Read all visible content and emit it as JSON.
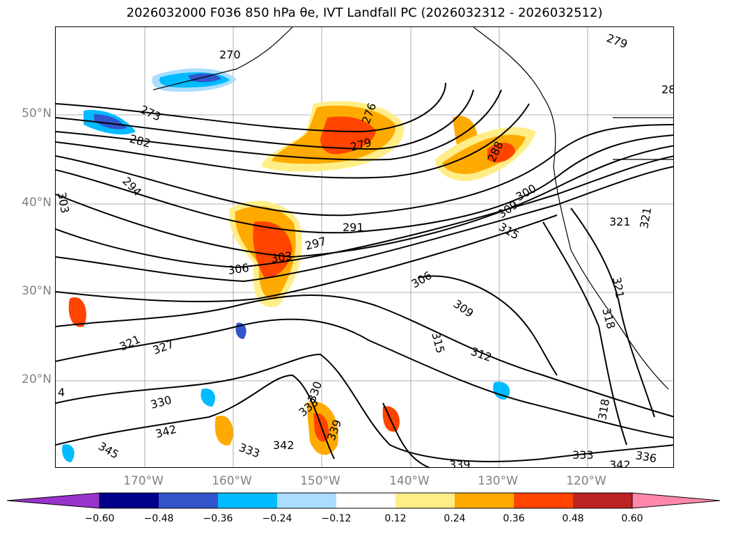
{
  "title": "2026032000 F036 850 hPa θe, IVT Landfall PC (2026032312 - 2026032512)",
  "lat_labels": [
    "50°N",
    "40°N",
    "30°N",
    "20°N"
  ],
  "lon_labels": [
    "170°W",
    "160°W",
    "150°W",
    "140°W",
    "130°W",
    "120°W"
  ],
  "colorbar": {
    "ticks": [
      "−0.60",
      "−0.48",
      "−0.36",
      "−0.24",
      "−0.12",
      "0.12",
      "0.24",
      "0.36",
      "0.48",
      "0.60"
    ],
    "colors": [
      "#9933cc",
      "#000088",
      "#3355cc",
      "#00bbff",
      "#aaddff",
      "#ffffff",
      "#ffee88",
      "#ffaa00",
      "#ff4400",
      "#bb2222",
      "#ff88aa"
    ]
  },
  "contour_labels": [
    "270",
    "273",
    "276",
    "279",
    "279",
    "282",
    "288",
    "291",
    "294",
    "297",
    "300",
    "303",
    "303",
    "306",
    "306",
    "309",
    "309",
    "312",
    "315",
    "315",
    "318",
    "318",
    "321",
    "321",
    "321",
    "321",
    "327",
    "330",
    "330",
    "333",
    "333",
    "333",
    "336",
    "339",
    "339",
    "342",
    "342",
    "342",
    "345",
    "4",
    "28"
  ],
  "colors": {
    "contour": "#000000",
    "coast": "#000000",
    "grid": "#999999",
    "tick_text": "#808080"
  }
}
